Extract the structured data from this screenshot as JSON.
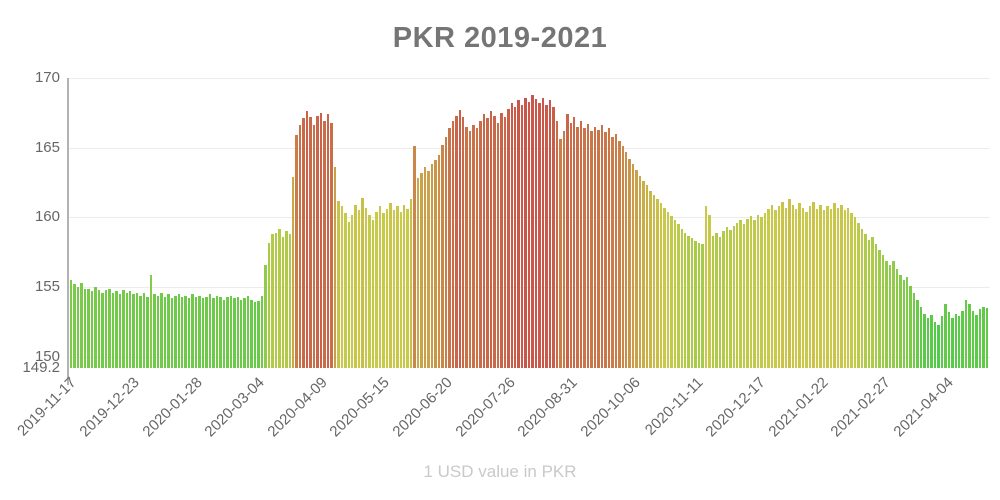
{
  "colors": {
    "title": "#757575",
    "axis_text": "#666666",
    "subtitle": "#c9c9c9",
    "gridline": "#ececec",
    "axis_line": "#b3b3b3",
    "background": "#ffffff",
    "bar_green": "#5fd054",
    "bar_yellow": "#c3cc40",
    "bar_red": "#d85c48"
  },
  "chart_data": {
    "type": "bar",
    "title": "PKR 2019-2021",
    "subtitle": "1 USD value in PKR",
    "xlabel": "",
    "ylabel": "",
    "ylim": [
      149.2,
      170
    ],
    "grid": "horizontal",
    "legend": "none",
    "yticks": [
      {
        "value": 170,
        "label": "170",
        "grid": true
      },
      {
        "value": 165,
        "label": "165",
        "grid": true
      },
      {
        "value": 160,
        "label": "160",
        "grid": true
      },
      {
        "value": 155,
        "label": "155",
        "grid": true
      },
      {
        "value": 150,
        "label": "150",
        "grid": true
      },
      {
        "value": 149.2,
        "label": "149.2",
        "grid": false
      }
    ],
    "xticks": {
      "interval_days": 36,
      "labels": [
        "2019-11-17",
        "2019-12-23",
        "2020-01-28",
        "2020-03-04",
        "2020-04-09",
        "2020-05-15",
        "2020-06-20",
        "2020-07-26",
        "2020-08-31",
        "2020-10-06",
        "2020-11-11",
        "2020-12-17",
        "2021-01-22",
        "2021-02-27",
        "2021-04-04"
      ]
    },
    "x_start_date": "2019-11-17",
    "x_step_days": 2,
    "color_scale": {
      "min_value": 152.3,
      "max_value": 168.8,
      "hue_at_min": 117,
      "hue_per_unit": -6.9,
      "hue_floor": 6,
      "saturation": 55,
      "lightness": 54
    },
    "values": [
      155.5,
      155.2,
      155.0,
      155.3,
      154.9,
      154.9,
      154.7,
      155.0,
      154.8,
      154.6,
      154.8,
      154.9,
      154.6,
      154.7,
      154.5,
      154.8,
      154.6,
      154.7,
      154.5,
      154.6,
      154.4,
      154.6,
      154.3,
      155.9,
      154.5,
      154.4,
      154.6,
      154.3,
      154.5,
      154.2,
      154.4,
      154.5,
      154.3,
      154.4,
      154.2,
      154.5,
      154.3,
      154.4,
      154.2,
      154.3,
      154.5,
      154.2,
      154.4,
      154.3,
      154.1,
      154.3,
      154.4,
      154.2,
      154.3,
      154.1,
      154.2,
      154.4,
      154.1,
      153.9,
      154.0,
      154.4,
      156.6,
      158.2,
      158.8,
      158.9,
      159.2,
      158.6,
      159.0,
      158.8,
      162.9,
      165.9,
      166.6,
      167.1,
      167.6,
      167.2,
      166.6,
      167.3,
      167.5,
      166.9,
      167.4,
      166.8,
      163.6,
      161.2,
      160.8,
      160.3,
      159.7,
      160.2,
      160.9,
      160.5,
      161.4,
      160.7,
      160.2,
      159.8,
      160.4,
      160.8,
      160.3,
      160.6,
      161.0,
      160.5,
      160.8,
      160.4,
      160.9,
      160.6,
      161.3,
      165.1,
      162.8,
      163.2,
      163.6,
      163.3,
      163.8,
      164.1,
      164.5,
      165.2,
      165.8,
      166.4,
      166.9,
      167.3,
      167.7,
      167.2,
      166.5,
      166.2,
      166.6,
      166.4,
      166.9,
      167.4,
      167.1,
      167.6,
      167.3,
      166.8,
      167.5,
      167.2,
      167.8,
      168.2,
      167.9,
      168.4,
      168.1,
      168.6,
      168.3,
      168.8,
      168.5,
      168.2,
      168.6,
      168.1,
      168.4,
      167.9,
      166.9,
      165.6,
      166.2,
      167.4,
      166.8,
      167.2,
      166.5,
      166.9,
      166.4,
      166.7,
      166.2,
      166.5,
      166.3,
      166.6,
      166.1,
      166.4,
      165.8,
      166.0,
      165.5,
      165.1,
      164.7,
      164.2,
      163.8,
      163.4,
      163.0,
      162.6,
      162.3,
      161.9,
      161.6,
      161.3,
      161.0,
      160.7,
      160.4,
      160.1,
      159.8,
      159.5,
      159.2,
      158.9,
      158.7,
      158.5,
      158.3,
      158.2,
      158.1,
      160.8,
      160.2,
      158.7,
      158.9,
      158.6,
      159.0,
      159.3,
      159.1,
      159.4,
      159.6,
      159.8,
      159.5,
      159.9,
      160.1,
      159.8,
      160.2,
      160.0,
      160.3,
      160.6,
      160.9,
      160.5,
      160.8,
      161.1,
      160.7,
      161.3,
      160.9,
      160.6,
      161.0,
      160.7,
      160.4,
      160.8,
      161.1,
      160.6,
      160.9,
      160.5,
      160.8,
      160.6,
      161.0,
      160.7,
      160.9,
      160.5,
      160.7,
      160.3,
      160.0,
      159.6,
      159.2,
      158.8,
      158.4,
      158.6,
      158.1,
      157.7,
      157.3,
      156.9,
      156.6,
      156.9,
      156.3,
      155.9,
      155.5,
      155.7,
      155.1,
      154.6,
      154.1,
      153.6,
      153.1,
      152.8,
      153.0,
      152.5,
      152.3,
      152.9,
      153.8,
      153.2,
      152.8,
      153.1,
      152.9,
      153.3,
      154.1,
      153.8,
      153.3,
      153.0,
      153.4,
      153.6,
      153.5
    ]
  }
}
